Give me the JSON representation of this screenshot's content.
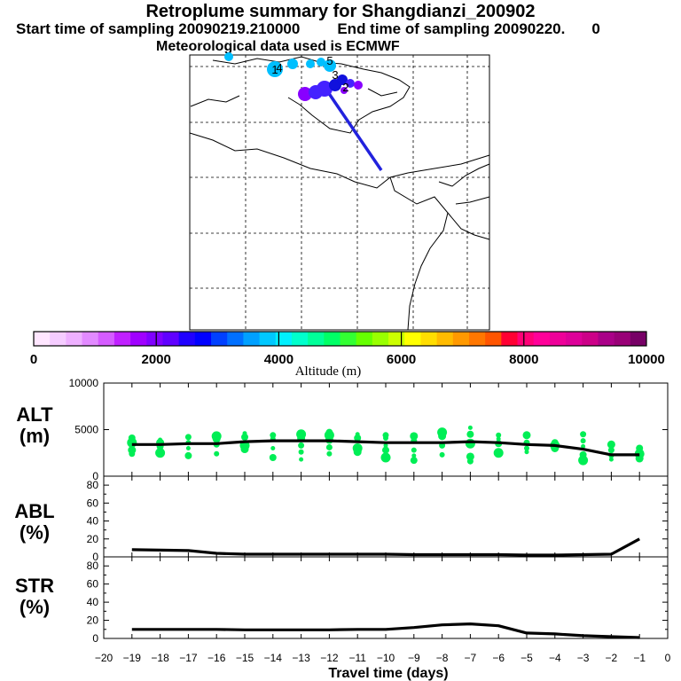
{
  "header": {
    "title": "Retroplume summary for Shangdianzi_200902",
    "start_time": "Start time of sampling 20090219.210000",
    "end_time": "End time of sampling 20090220.",
    "end_time_suffix": "0",
    "met_data": "Meteorological data used is ECMWF"
  },
  "map": {
    "trajectory_markers": [
      "1",
      "2",
      "3",
      "4",
      "5"
    ],
    "marker_colors": [
      "#00bfff",
      "#8800ff",
      "#4422ff",
      "#1111dd"
    ],
    "track_color": "#2222dd"
  },
  "colorbar": {
    "title": "Altitude  (m)",
    "tick_labels": [
      "0",
      "2000",
      "4000",
      "6000",
      "8000",
      "10000"
    ],
    "colors": [
      "#ffe6ff",
      "#f5ccff",
      "#eeb0ff",
      "#e28aff",
      "#d55cff",
      "#c020ff",
      "#a000ff",
      "#8000ff",
      "#6000ff",
      "#2000ff",
      "#0000ff",
      "#0040ff",
      "#0070ff",
      "#00a0ff",
      "#00c8ff",
      "#00f0ff",
      "#00ffcc",
      "#00ff99",
      "#00ff66",
      "#33ff33",
      "#66ff00",
      "#99ff00",
      "#ccff00",
      "#ffff00",
      "#ffdd00",
      "#ffbb00",
      "#ff9900",
      "#ff7700",
      "#ff5500",
      "#ff0033",
      "#ff0077",
      "#ff0099",
      "#ee0099",
      "#dd0099",
      "#cc0088",
      "#aa0088",
      "#990077",
      "#770066"
    ]
  },
  "chart_data": [
    {
      "type": "line",
      "panel": "ALT",
      "ylabel": "ALT\n(m)",
      "ylabel_line1": "ALT",
      "ylabel_line2": "(m)",
      "ylim": [
        0,
        10000
      ],
      "yticks": [
        "10000",
        "5000",
        "0"
      ],
      "x": [
        -19,
        -18,
        -17,
        -16,
        -15,
        -14,
        -13,
        -12,
        -11,
        -10,
        -9,
        -8,
        -7,
        -6,
        -5,
        -4,
        -3,
        -2,
        -1
      ],
      "values": [
        3400,
        3400,
        3500,
        3500,
        3700,
        3800,
        3800,
        3800,
        3700,
        3600,
        3600,
        3600,
        3700,
        3600,
        3400,
        3300,
        2900,
        2300,
        2300
      ],
      "scatter_color": "#00ee55",
      "scatter": [
        [
          -19,
          4100
        ],
        [
          -19,
          3600
        ],
        [
          -19,
          2800
        ],
        [
          -19,
          2400
        ],
        [
          -19,
          3200
        ],
        [
          -18,
          3900
        ],
        [
          -18,
          3200
        ],
        [
          -18,
          2500
        ],
        [
          -18,
          3600
        ],
        [
          -17,
          4200
        ],
        [
          -17,
          3600
        ],
        [
          -17,
          3000
        ],
        [
          -17,
          2200
        ],
        [
          -16,
          4300
        ],
        [
          -16,
          4000
        ],
        [
          -16,
          3400
        ],
        [
          -16,
          2400
        ],
        [
          -15,
          4600
        ],
        [
          -15,
          4200
        ],
        [
          -15,
          3300
        ],
        [
          -15,
          2900
        ],
        [
          -14,
          4400
        ],
        [
          -14,
          4000
        ],
        [
          -14,
          3000
        ],
        [
          -14,
          2000
        ],
        [
          -13,
          4500
        ],
        [
          -13,
          4100
        ],
        [
          -13,
          3300
        ],
        [
          -13,
          2600
        ],
        [
          -13,
          1800
        ],
        [
          -12,
          4700
        ],
        [
          -12,
          4400
        ],
        [
          -12,
          3900
        ],
        [
          -12,
          3100
        ],
        [
          -12,
          2400
        ],
        [
          -11,
          4500
        ],
        [
          -11,
          4100
        ],
        [
          -11,
          3000
        ],
        [
          -11,
          2600
        ],
        [
          -10,
          4400
        ],
        [
          -10,
          4100
        ],
        [
          -10,
          3300
        ],
        [
          -10,
          2800
        ],
        [
          -10,
          2000
        ],
        [
          -9,
          4300
        ],
        [
          -9,
          3800
        ],
        [
          -9,
          2800
        ],
        [
          -9,
          2200
        ],
        [
          -9,
          1700
        ],
        [
          -8,
          4700
        ],
        [
          -8,
          4300
        ],
        [
          -8,
          3300
        ],
        [
          -8,
          2300
        ],
        [
          -7,
          5200
        ],
        [
          -7,
          4500
        ],
        [
          -7,
          3500
        ],
        [
          -7,
          2100
        ],
        [
          -7,
          1600
        ],
        [
          -6,
          4400
        ],
        [
          -6,
          4000
        ],
        [
          -6,
          3500
        ],
        [
          -6,
          2500
        ],
        [
          -5,
          4400
        ],
        [
          -5,
          3600
        ],
        [
          -5,
          3000
        ],
        [
          -5,
          2600
        ],
        [
          -4,
          3600
        ],
        [
          -4,
          3300
        ],
        [
          -4,
          3000
        ],
        [
          -3,
          4500
        ],
        [
          -3,
          3800
        ],
        [
          -3,
          3200
        ],
        [
          -3,
          2300
        ],
        [
          -3,
          1700
        ],
        [
          -2,
          3400
        ],
        [
          -2,
          2800
        ],
        [
          -2,
          2200
        ],
        [
          -2,
          1800
        ],
        [
          -1,
          3000
        ],
        [
          -1,
          2400
        ],
        [
          -1,
          1900
        ]
      ]
    },
    {
      "type": "line",
      "panel": "ABL",
      "ylabel_line1": "ABL",
      "ylabel_line2": "(%)",
      "ylim": [
        0,
        90
      ],
      "yticks": [
        "80",
        "60",
        "40",
        "20",
        "0"
      ],
      "x": [
        -19,
        -18,
        -17,
        -16,
        -15,
        -14,
        -13,
        -12,
        -11,
        -10,
        -9,
        -8,
        -7,
        -6,
        -5,
        -4,
        -3,
        -2,
        -1
      ],
      "values": [
        8,
        7.5,
        7,
        4,
        3,
        3,
        3,
        3,
        3,
        3,
        2.5,
        2.5,
        2.5,
        2.5,
        2,
        2,
        2.5,
        3,
        20
      ]
    },
    {
      "type": "line",
      "panel": "STR",
      "ylabel_line1": "STR",
      "ylabel_line2": "(%)",
      "ylim": [
        0,
        90
      ],
      "yticks": [
        "80",
        "60",
        "40",
        "20",
        "0"
      ],
      "x": [
        -19,
        -18,
        -17,
        -16,
        -15,
        -14,
        -13,
        -12,
        -11,
        -10,
        -9,
        -8,
        -7,
        -6,
        -5,
        -4,
        -3,
        -2,
        -1
      ],
      "values": [
        10,
        10,
        10,
        10,
        9.5,
        9.5,
        9.5,
        9.5,
        10,
        10,
        12,
        15,
        16,
        14,
        6,
        5,
        3,
        2,
        1
      ],
      "xlabel": "Travel time (days)",
      "xlim": [
        -20,
        0
      ],
      "xticks": [
        "−20",
        "−19",
        "−18",
        "−17",
        "−16",
        "−15",
        "−14",
        "−13",
        "−12",
        "−11",
        "−10",
        "−9",
        "−8",
        "−7",
        "−6",
        "−5",
        "−4",
        "−3",
        "−2",
        "−1",
        "0"
      ]
    }
  ]
}
